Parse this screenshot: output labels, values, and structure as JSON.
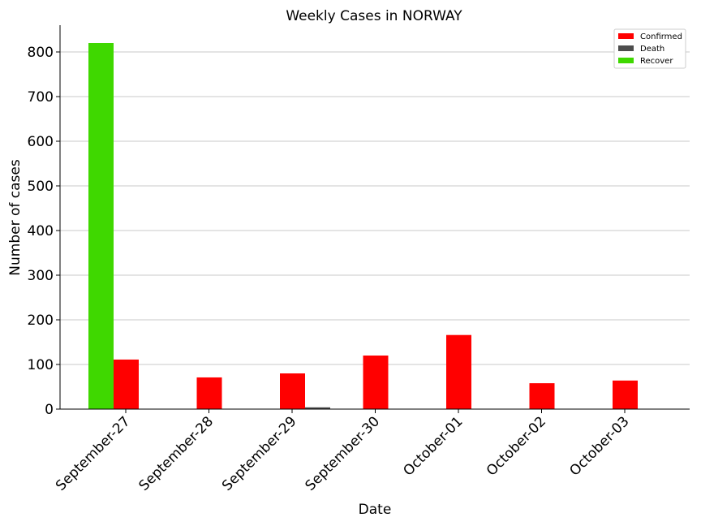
{
  "chart_data": {
    "type": "bar",
    "title": "Weekly Cases in NORWAY",
    "xlabel": "Date",
    "ylabel": "Number of cases",
    "ylim": [
      0,
      860
    ],
    "yticks": [
      0,
      100,
      200,
      300,
      400,
      500,
      600,
      700,
      800
    ],
    "grid": "horizontal",
    "legend_position": "top-right",
    "categories": [
      "September-27",
      "September-28",
      "September-29",
      "September-30",
      "October-01",
      "October-02",
      "October-03"
    ],
    "series": [
      {
        "name": "Confirmed",
        "color": "#ff0000",
        "values": [
          111,
          71,
          80,
          120,
          166,
          58,
          64
        ]
      },
      {
        "name": "Death",
        "color": "#4d4d4d",
        "values": [
          0,
          0,
          4,
          0,
          0,
          0,
          0
        ]
      },
      {
        "name": "Recover",
        "color": "#3fd800",
        "values": [
          820,
          0,
          0,
          0,
          0,
          0,
          0
        ]
      }
    ]
  }
}
